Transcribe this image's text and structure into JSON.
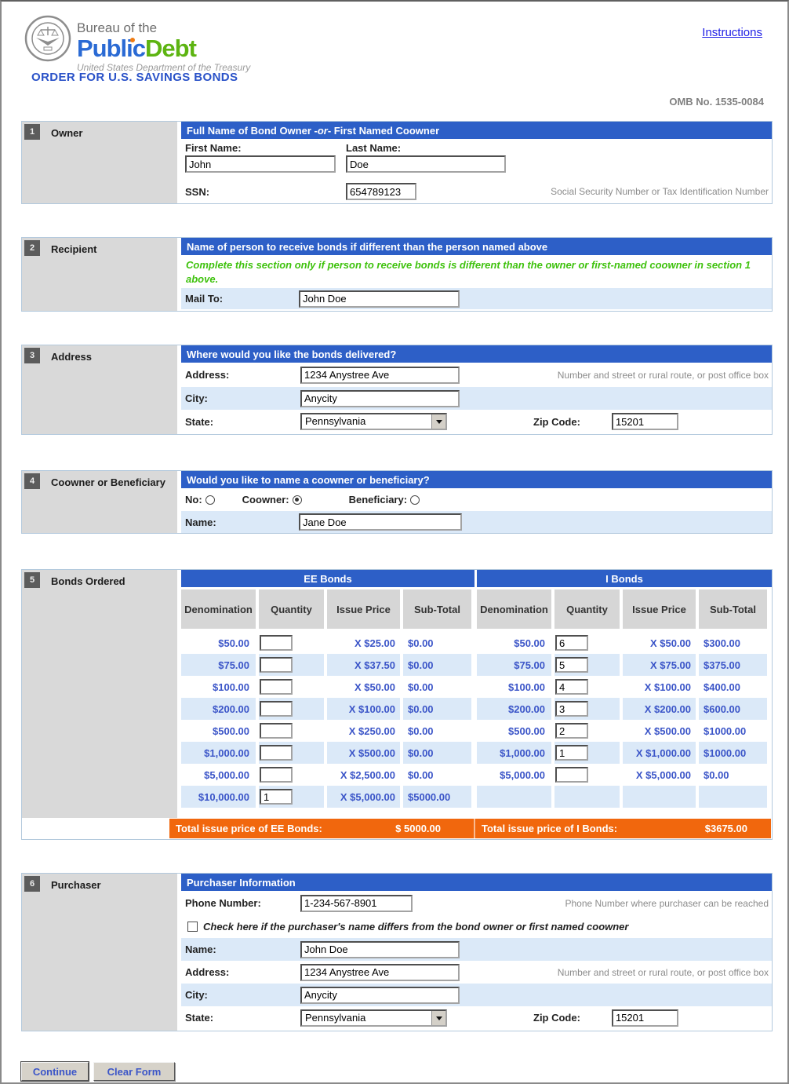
{
  "header": {
    "seal_icon": "treasury-seal-icon",
    "bureau_line": "Bureau of the",
    "brand_public": "Public",
    "brand_debt": "Debt",
    "tagline": "United States Department of the Treasury",
    "form_title": "ORDER FOR U.S. SAVINGS BONDS",
    "instructions_link": "Instructions",
    "omb": "OMB No. 1535-0084"
  },
  "colors": {
    "header_bar_blue": "#2d5fc7",
    "highlight_row_blue": "#dbe9f8",
    "totals_orange": "#f1670d",
    "table_text_blue": "#3b55c8",
    "note_green": "#3fc20e",
    "link_blue": "#2121e6",
    "logo_blue": "#2a6ad4",
    "logo_green": "#5db411"
  },
  "sections": {
    "owner": {
      "number": "1",
      "label": "Owner",
      "header_pre": "Full Name of Bond Owner - ",
      "header_or": "or",
      "header_post": " - First Named Coowner",
      "first_name_label": "First Name:",
      "first_name_value": "John",
      "last_name_label": "Last Name:",
      "last_name_value": "Doe",
      "ssn_label": "SSN:",
      "ssn_value": "654789123",
      "ssn_note": "Social Security Number or Tax Identification Number"
    },
    "recipient": {
      "number": "2",
      "label": "Recipient",
      "header": "Name of person to receive bonds if different than the person named above",
      "note": "Complete this section only if person to receive bonds is different than the owner or first-named coowner in section 1 above.",
      "mail_to_label": "Mail To:",
      "mail_to_value": "John Doe"
    },
    "address": {
      "number": "3",
      "label": "Address",
      "header": "Where would you like the bonds delivered?",
      "address_label": "Address:",
      "address_value": "1234 Anystree Ave",
      "address_note": "Number and street or rural route, or post office box",
      "city_label": "City:",
      "city_value": "Anycity",
      "state_label": "State:",
      "state_value": "Pennsylvania",
      "zip_label": "Zip Code:",
      "zip_value": "15201"
    },
    "coowner": {
      "number": "4",
      "label": "Coowner or Beneficiary",
      "header": "Would you like to name a coowner or beneficiary?",
      "options": [
        {
          "label": "No:",
          "checked": false
        },
        {
          "label": "Coowner:",
          "checked": true
        },
        {
          "label": "Beneficiary:",
          "checked": false
        }
      ],
      "name_label": "Name:",
      "name_value": "Jane Doe"
    },
    "bonds": {
      "number": "5",
      "label": "Bonds Ordered",
      "ee_title": "EE Bonds",
      "i_title": "I Bonds",
      "columns": [
        "Denomination",
        "Quantity",
        "Issue Price",
        "Sub-Total"
      ],
      "ee_rows": [
        {
          "denomination": "$50.00",
          "quantity": "",
          "issue_price": "X $25.00",
          "subtotal": "$0.00"
        },
        {
          "denomination": "$75.00",
          "quantity": "",
          "issue_price": "X $37.50",
          "subtotal": "$0.00"
        },
        {
          "denomination": "$100.00",
          "quantity": "",
          "issue_price": "X $50.00",
          "subtotal": "$0.00"
        },
        {
          "denomination": "$200.00",
          "quantity": "",
          "issue_price": "X $100.00",
          "subtotal": "$0.00"
        },
        {
          "denomination": "$500.00",
          "quantity": "",
          "issue_price": "X $250.00",
          "subtotal": "$0.00"
        },
        {
          "denomination": "$1,000.00",
          "quantity": "",
          "issue_price": "X $500.00",
          "subtotal": "$0.00"
        },
        {
          "denomination": "$5,000.00",
          "quantity": "",
          "issue_price": "X $2,500.00",
          "subtotal": "$0.00"
        },
        {
          "denomination": "$10,000.00",
          "quantity": "1",
          "issue_price": "X $5,000.00",
          "subtotal": "$5000.00"
        }
      ],
      "i_rows": [
        {
          "denomination": "$50.00",
          "quantity": "6",
          "issue_price": "X $50.00",
          "subtotal": "$300.00"
        },
        {
          "denomination": "$75.00",
          "quantity": "5",
          "issue_price": "X $75.00",
          "subtotal": "$375.00"
        },
        {
          "denomination": "$100.00",
          "quantity": "4",
          "issue_price": "X $100.00",
          "subtotal": "$400.00"
        },
        {
          "denomination": "$200.00",
          "quantity": "3",
          "issue_price": "X $200.00",
          "subtotal": "$600.00"
        },
        {
          "denomination": "$500.00",
          "quantity": "2",
          "issue_price": "X $500.00",
          "subtotal": "$1000.00"
        },
        {
          "denomination": "$1,000.00",
          "quantity": "1",
          "issue_price": "X $1,000.00",
          "subtotal": "$1000.00"
        },
        {
          "denomination": "$5,000.00",
          "quantity": "",
          "issue_price": "X $5,000.00",
          "subtotal": "$0.00"
        },
        {
          "denomination": "",
          "quantity": "",
          "issue_price": "",
          "subtotal": "",
          "empty": true
        }
      ],
      "ee_total_label": "Total issue price of EE Bonds:",
      "ee_total_value": "$ 5000.00",
      "i_total_label": "Total issue price of I Bonds:",
      "i_total_value": "$3675.00"
    },
    "purchaser": {
      "number": "6",
      "label": "Purchaser",
      "header": "Purchaser Information",
      "phone_label": "Phone Number:",
      "phone_value": "1-234-567-8901",
      "phone_note": "Phone Number where purchaser can be reached",
      "checkbox_label": "Check here if the purchaser's name differs from the bond owner or first named coowner",
      "checkbox_checked": false,
      "name_label": "Name:",
      "name_value": "John Doe",
      "address_label": "Address:",
      "address_value": "1234 Anystree Ave",
      "address_note": "Number and street or rural route, or post office box",
      "city_label": "City:",
      "city_value": "Anycity",
      "state_label": "State:",
      "state_value": "Pennsylvania",
      "zip_label": "Zip Code:",
      "zip_value": "15201"
    }
  },
  "buttons": {
    "continue_label": "Continue",
    "clear_label": "Clear Form"
  }
}
